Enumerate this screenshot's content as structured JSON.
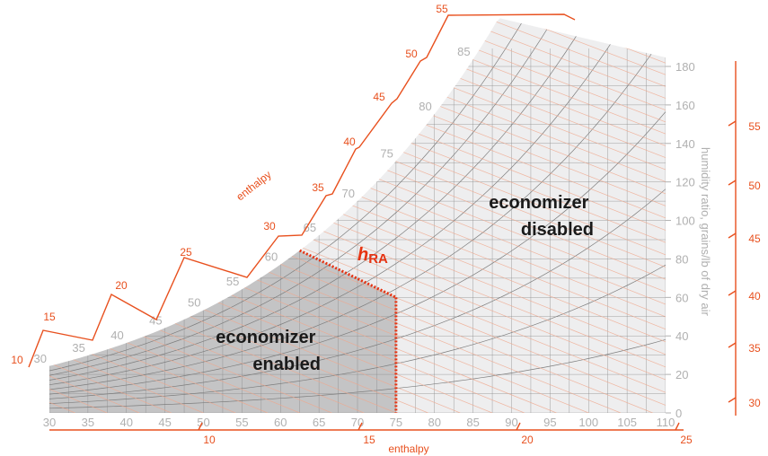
{
  "chart_data": {
    "type": "psychrometric",
    "x_axis": {
      "min": 30,
      "max": 110,
      "ticks": [
        30,
        35,
        40,
        45,
        50,
        55,
        60,
        65,
        70,
        75,
        80,
        85,
        90,
        95,
        100,
        105,
        110
      ]
    },
    "y_axis": {
      "label": "humidity ratio, grains/lb of dry air",
      "min": 0,
      "max": 180,
      "ticks": [
        0,
        20,
        40,
        60,
        80,
        100,
        120,
        140,
        160,
        180
      ]
    },
    "saturation_labels": [
      30,
      35,
      40,
      45,
      50,
      55,
      60,
      65,
      70,
      75,
      80,
      85
    ],
    "enthalpy_bottom": {
      "label": "enthalpy",
      "ticks": [
        10,
        15,
        20,
        25
      ]
    },
    "enthalpy_left": {
      "label": "enthalpy",
      "ticks": [
        10,
        15,
        20,
        25,
        30,
        35,
        40,
        45,
        50,
        55
      ]
    },
    "enthalpy_right": {
      "ticks": [
        30,
        35,
        40,
        45,
        50,
        55
      ]
    },
    "boundary": {
      "label_italic": "h",
      "label_sub": "RA",
      "changeover_drybulb": 75
    },
    "regions": {
      "enabled": [
        "economizer",
        "enabled"
      ],
      "disabled": [
        "economizer",
        "disabled"
      ]
    },
    "colors": {
      "enabled_fill": "#c4c4c5",
      "disabled_fill": "#eeeeef",
      "grid": "#8a8a8a",
      "enthalpy_lines": "#f0a78c",
      "accent": "#e8501e",
      "boundary": "#e63312"
    }
  }
}
